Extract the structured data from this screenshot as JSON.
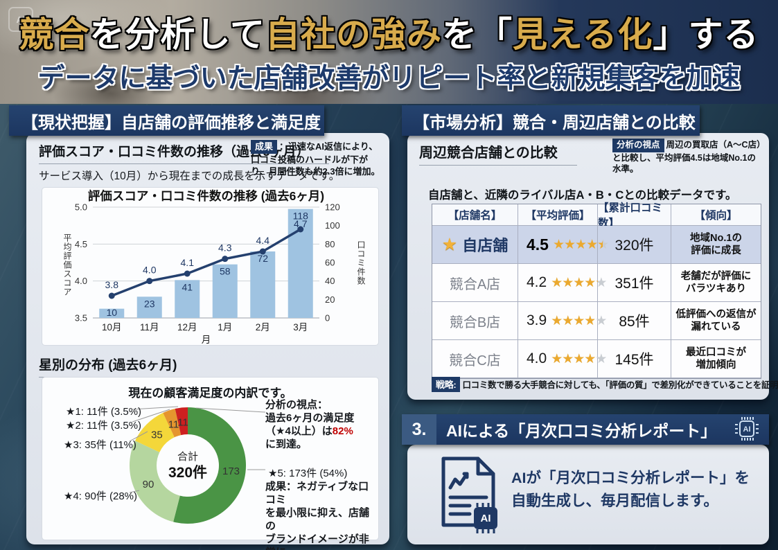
{
  "title": {
    "segments": [
      {
        "text": "競合",
        "gold": true
      },
      {
        "text": "を分析して",
        "gold": false
      },
      {
        "text": "自社の強み",
        "gold": true
      },
      {
        "text": "を「",
        "gold": false
      },
      {
        "text": "見える化",
        "gold": true
      },
      {
        "text": "」する",
        "gold": false
      }
    ],
    "subtitle": "データに基づいた店舗改善がリピート率と新規集客を加速"
  },
  "watermark": "AI",
  "left_section": {
    "header": "【現状把握】自店舗の評価推移と満足度",
    "trend_heading": "評価スコア・口コミ件数の推移（過去6ヶ月）",
    "trend_caption": "サービス導入（10月）から現在までの成長を示すデータです。",
    "result_badge": "成果",
    "result_text": "：迅速なAI返信により、口コミ投稿のハードルが下がり、月間件数も約2.3倍に増加。",
    "star_heading": "星別の分布 (過去6ヶ月)"
  },
  "right_section": {
    "header": "【市場分析】競合・周辺店舗との比較",
    "compare_heading": "周辺競合店舗との比較",
    "insight_badge": "分析の視点",
    "insight_text": "周辺の買取店（A〜C店）と比較し、平均評価4.5は地域No.1の水準。",
    "intro": "自店舗と、近隣のライバル店A・B・Cとの比較データです。",
    "strategy_badge": "戦略:",
    "strategy_text": "口コミ数で勝る大手競合に対しても、「評価の質」で差別化ができていることを証明。"
  },
  "table": {
    "headers": [
      "【店舗名】",
      "【平均評価】",
      "【累計口コミ数】",
      "【傾向】"
    ],
    "rows": [
      {
        "store": "自店舗",
        "marker": "★",
        "rating": "4.5",
        "reviews": "320件",
        "trend": "地域No.1の\n評価に成長",
        "highlight": true
      },
      {
        "store": "競合A店",
        "rating": "4.2",
        "reviews": "351件",
        "trend": "老舗だが評価に\nバラツキあり",
        "highlight": false
      },
      {
        "store": "競合B店",
        "rating": "3.9",
        "reviews": "85件",
        "trend": "低評価への返信が\n漏れている",
        "highlight": false
      },
      {
        "store": "競合C店",
        "rating": "4.0",
        "reviews": "145件",
        "trend": "最近口コミが\n増加傾向",
        "highlight": false
      }
    ]
  },
  "section3": {
    "number": "3.",
    "header": "AIによる「月次口コミ分析レポート」",
    "chip_label": "AI",
    "doc_chip_label": "AI",
    "body_line1": "AIが「月次口コミ分析レポート」を",
    "body_line2": "自動生成し、毎月配信します。"
  },
  "chart_data": [
    {
      "type": "bar",
      "subtype": "combo-bar-line",
      "title": "評価スコア・口コミ件数の推移 (過去6ヶ月)",
      "categories": [
        "10月",
        "11月",
        "12月",
        "1月",
        "2月",
        "3月"
      ],
      "series": [
        {
          "name": "口コミ件数",
          "type": "bar",
          "axis": "right",
          "values": [
            10,
            23,
            41,
            58,
            72,
            118
          ],
          "color": "#9fc3e1"
        },
        {
          "name": "平均評価スコア",
          "type": "line",
          "axis": "left",
          "values": [
            3.8,
            4.0,
            4.1,
            4.3,
            4.4,
            4.7
          ],
          "color": "#24406e"
        }
      ],
      "xlabel": "月",
      "left_axis": {
        "label": "平均評価スコア",
        "min": 3.5,
        "max": 5.0,
        "ticks": [
          "3.5",
          "4.0",
          "4.5",
          "5.0"
        ]
      },
      "right_axis": {
        "label": "口コミ件数",
        "min": 0,
        "max": 120,
        "ticks": [
          0,
          20,
          40,
          60,
          80,
          100,
          120
        ]
      },
      "grid": true
    },
    {
      "type": "pie",
      "subtype": "donut",
      "title": "現在の顧客満足度の内訳です。",
      "center_label": "合計",
      "center_value": "320件",
      "total": 320,
      "slices": [
        {
          "label": "★5: 173件 (54%)",
          "value": 173,
          "pct": 54,
          "color": "#4a9445"
        },
        {
          "label": "★4: 90件 (28%)",
          "value": 90,
          "pct": 28,
          "color": "#b5d69f"
        },
        {
          "label": "★3: 35件 (11%)",
          "value": 35,
          "pct": 11,
          "color": "#f4d73a"
        },
        {
          "label": "★2: 11件 (3.5%)",
          "value": 11,
          "pct": 3.5,
          "color": "#e5952e"
        },
        {
          "label": "★1: 11件 (3.5%)",
          "value": 11,
          "pct": 3.5,
          "color": "#cd2020"
        }
      ],
      "annotations": {
        "insight_prefix": "分析の視点：\n過去6ヶ月の満足度\n（★4以上）は",
        "insight_highlight": "82%",
        "insight_suffix": "\nに到達。",
        "result_text": "成果：ネガティブな口コミ\nを最小限に抑え、店舗の\nブランドイメージが非常に\n高い水準で安定。"
      }
    }
  ],
  "colors": {
    "navy": "#1e3a66",
    "gold": "#d8ab4c",
    "bar": "#9fc3e1",
    "line": "#24406e",
    "accent_red": "#c00000",
    "star_gold": "#eba92f",
    "highlight_row": "#ccd5e9"
  }
}
